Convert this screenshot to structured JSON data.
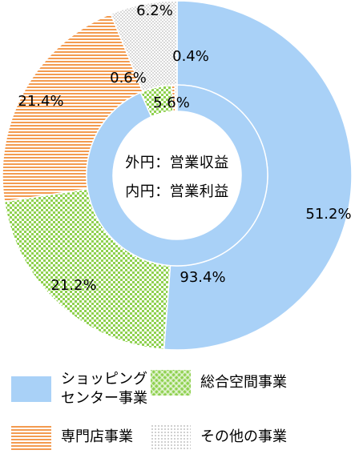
{
  "chart_data": {
    "type": "pie",
    "variant": "nested-donut",
    "categories": [
      "ショッピングセンター事業",
      "総合空間事業",
      "専門店事業",
      "その他の事業"
    ],
    "colors": [
      "#a9d1f7",
      "#8fd14f",
      "#f39b50",
      "#c8c8c8"
    ],
    "series": [
      {
        "name": "外円：営業収益",
        "values": [
          51.2,
          21.4,
          21.2,
          6.2
        ],
        "labels": [
          "51.2%",
          "21.4%",
          "21.2%",
          "6.2%"
        ]
      },
      {
        "name": "内円：営業利益",
        "values": [
          93.4,
          5.6,
          0.6,
          0.4
        ],
        "labels": [
          "93.4%",
          "5.6%",
          "0.6%",
          "0.4%"
        ]
      }
    ]
  },
  "center": {
    "line1": "外円：営業収益",
    "line2": "内円：営業利益"
  },
  "legend": [
    {
      "label": "ショッピング\nセンター事業",
      "pattern": "solid-blue"
    },
    {
      "label": "総合空間事業",
      "pattern": "green-checker"
    },
    {
      "label": "専門店事業",
      "pattern": "orange-stripes"
    },
    {
      "label": "その他の事業",
      "pattern": "gray-dots"
    }
  ]
}
